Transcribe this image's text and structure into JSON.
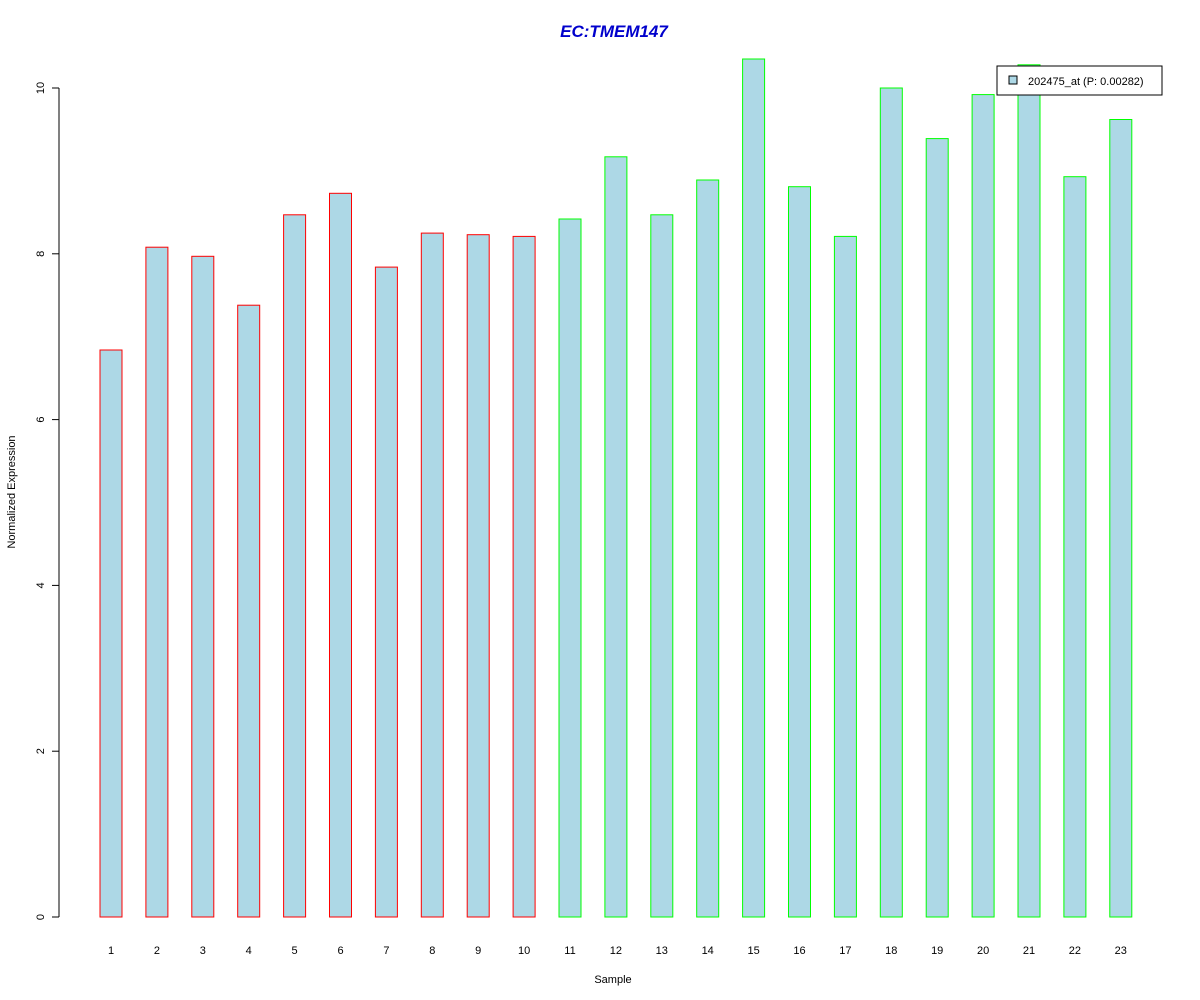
{
  "chart_data": {
    "type": "bar",
    "title": "EC:TMEM147",
    "xlabel": "Sample",
    "ylabel": "Normalized Expression",
    "categories": [
      "1",
      "2",
      "3",
      "4",
      "5",
      "6",
      "7",
      "8",
      "9",
      "10",
      "11",
      "12",
      "13",
      "14",
      "15",
      "16",
      "17",
      "18",
      "19",
      "20",
      "21",
      "22",
      "23"
    ],
    "values": [
      6.84,
      8.08,
      7.97,
      7.38,
      8.47,
      8.73,
      7.84,
      8.25,
      8.23,
      8.21,
      8.42,
      9.17,
      8.47,
      8.89,
      10.35,
      8.81,
      8.21,
      10.0,
      9.39,
      9.92,
      10.28,
      8.93,
      9.62
    ],
    "group_border_colors": [
      "#ff0000",
      "#ff0000",
      "#ff0000",
      "#ff0000",
      "#ff0000",
      "#ff0000",
      "#ff0000",
      "#ff0000",
      "#ff0000",
      "#ff0000",
      "#00ff00",
      "#00ff00",
      "#00ff00",
      "#00ff00",
      "#00ff00",
      "#00ff00",
      "#00ff00",
      "#00ff00",
      "#00ff00",
      "#00ff00",
      "#00ff00",
      "#00ff00",
      "#00ff00"
    ],
    "bar_fill": "#add8e6",
    "title_color": "#0000cc",
    "y_ticks": [
      "0",
      "2",
      "4",
      "6",
      "8",
      "10"
    ],
    "ylim": [
      0,
      10.35
    ],
    "legend": {
      "position": "top-right",
      "entries": [
        {
          "label": "202475_at (P: 0.00282)",
          "color": "#add8e6"
        }
      ]
    },
    "grid": false
  }
}
